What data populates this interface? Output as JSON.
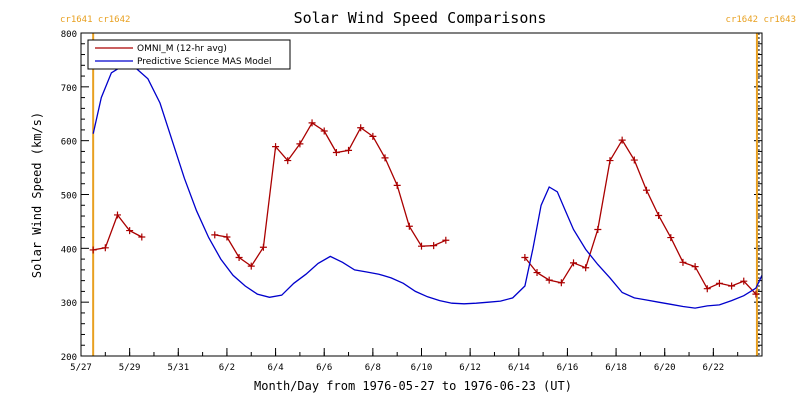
{
  "chart_data": {
    "type": "line",
    "title": "Solar Wind Speed Comparisons",
    "xlabel": "Month/Day from 1976-05-27 to 1976-06-23 (UT)",
    "ylabel": "Solar Wind Speed (km/s)",
    "xlim": [
      "1976-05-27",
      "1976-06-24"
    ],
    "ylim": [
      200,
      800
    ],
    "x_ticks": [
      {
        "date": "1976-05-27",
        "label": "5/27"
      },
      {
        "date": "1976-05-29",
        "label": "5/29"
      },
      {
        "date": "1976-05-31",
        "label": "5/31"
      },
      {
        "date": "1976-06-02",
        "label": "6/2"
      },
      {
        "date": "1976-06-04",
        "label": "6/4"
      },
      {
        "date": "1976-06-06",
        "label": "6/6"
      },
      {
        "date": "1976-06-08",
        "label": "6/8"
      },
      {
        "date": "1976-06-10",
        "label": "6/10"
      },
      {
        "date": "1976-06-12",
        "label": "6/12"
      },
      {
        "date": "1976-06-14",
        "label": "6/14"
      },
      {
        "date": "1976-06-16",
        "label": "6/16"
      },
      {
        "date": "1976-06-18",
        "label": "6/18"
      },
      {
        "date": "1976-06-20",
        "label": "6/20"
      },
      {
        "date": "1976-06-22",
        "label": "6/22"
      }
    ],
    "y_ticks": [
      200,
      300,
      400,
      500,
      600,
      700,
      800
    ],
    "rotation_markers": [
      {
        "date": "1976-05-27T12:00",
        "label": "cr1641 cr1642",
        "color": "#e8a020"
      },
      {
        "date": "1976-06-23T19:00",
        "label": "cr1642 cr1643",
        "color": "#e8a020"
      }
    ],
    "legend_placement": "top-left",
    "series": [
      {
        "name": "OMNI_M (12-hr avg)",
        "color": "#aa0000",
        "marker": "plus",
        "segments": [
          [
            [
              "1976-05-27T12:00",
              397
            ],
            [
              "1976-05-28T00:00",
              401
            ],
            [
              "1976-05-28T12:00",
              462
            ],
            [
              "1976-05-29T00:00",
              433
            ],
            [
              "1976-05-29T12:00",
              421
            ]
          ],
          [
            [
              "1976-06-01T12:00",
              425
            ],
            [
              "1976-06-02T00:00",
              421
            ],
            [
              "1976-06-02T12:00",
              383
            ],
            [
              "1976-06-03T00:00",
              367
            ],
            [
              "1976-06-03T12:00",
              402
            ],
            [
              "1976-06-04T00:00",
              589
            ],
            [
              "1976-06-04T12:00",
              563
            ],
            [
              "1976-06-05T00:00",
              594
            ],
            [
              "1976-06-05T12:00",
              633
            ],
            [
              "1976-06-06T00:00",
              618
            ],
            [
              "1976-06-06T12:00",
              578
            ],
            [
              "1976-06-07T00:00",
              582
            ],
            [
              "1976-06-07T12:00",
              624
            ],
            [
              "1976-06-08T00:00",
              608
            ],
            [
              "1976-06-08T12:00",
              568
            ],
            [
              "1976-06-09T00:00",
              517
            ],
            [
              "1976-06-09T12:00",
              441
            ],
            [
              "1976-06-10T00:00",
              404
            ],
            [
              "1976-06-10T12:00",
              405
            ],
            [
              "1976-06-11T00:00",
              415
            ]
          ],
          [
            [
              "1976-06-14T06:00",
              383
            ],
            [
              "1976-06-14T18:00",
              355
            ],
            [
              "1976-06-15T06:00",
              341
            ],
            [
              "1976-06-15T18:00",
              336
            ],
            [
              "1976-06-16T06:00",
              373
            ],
            [
              "1976-06-16T18:00",
              364
            ],
            [
              "1976-06-17T06:00",
              435
            ],
            [
              "1976-06-17T18:00",
              563
            ],
            [
              "1976-06-18T06:00",
              601
            ],
            [
              "1976-06-18T18:00",
              564
            ],
            [
              "1976-06-19T06:00",
              508
            ],
            [
              "1976-06-19T18:00",
              461
            ],
            [
              "1976-06-20T06:00",
              420
            ],
            [
              "1976-06-20T18:00",
              374
            ],
            [
              "1976-06-21T06:00",
              366
            ],
            [
              "1976-06-21T18:00",
              325
            ],
            [
              "1976-06-22T06:00",
              335
            ],
            [
              "1976-06-22T18:00",
              330
            ],
            [
              "1976-06-23T06:00",
              339
            ],
            [
              "1976-06-23T18:00",
              315
            ]
          ]
        ]
      },
      {
        "name": "Predictive Science MAS Model",
        "color": "#0000cc",
        "marker": "none",
        "segments": [
          [
            [
              "1976-05-27T12:00",
              613
            ],
            [
              "1976-05-27T20:00",
              680
            ],
            [
              "1976-05-28T06:00",
              726
            ],
            [
              "1976-05-28T18:00",
              740
            ],
            [
              "1976-05-29T06:00",
              735
            ],
            [
              "1976-05-29T18:00",
              715
            ],
            [
              "1976-05-30T06:00",
              670
            ],
            [
              "1976-05-30T18:00",
              600
            ],
            [
              "1976-05-31T06:00",
              530
            ],
            [
              "1976-05-31T18:00",
              470
            ],
            [
              "1976-06-01T06:00",
              420
            ],
            [
              "1976-06-01T18:00",
              380
            ],
            [
              "1976-06-02T06:00",
              350
            ],
            [
              "1976-06-02T18:00",
              330
            ],
            [
              "1976-06-03T06:00",
              315
            ],
            [
              "1976-06-03T18:00",
              309
            ],
            [
              "1976-06-04T06:00",
              313
            ],
            [
              "1976-06-04T18:00",
              335
            ],
            [
              "1976-06-05T06:00",
              352
            ],
            [
              "1976-06-05T18:00",
              372
            ],
            [
              "1976-06-06T06:00",
              385
            ],
            [
              "1976-06-06T18:00",
              374
            ],
            [
              "1976-06-07T06:00",
              360
            ],
            [
              "1976-06-07T18:00",
              356
            ],
            [
              "1976-06-08T06:00",
              352
            ],
            [
              "1976-06-08T18:00",
              345
            ],
            [
              "1976-06-09T06:00",
              335
            ],
            [
              "1976-06-09T18:00",
              320
            ],
            [
              "1976-06-10T06:00",
              310
            ],
            [
              "1976-06-10T18:00",
              303
            ],
            [
              "1976-06-11T06:00",
              298
            ],
            [
              "1976-06-11T18:00",
              297
            ],
            [
              "1976-06-12T06:00",
              298
            ],
            [
              "1976-06-12T18:00",
              300
            ],
            [
              "1976-06-13T06:00",
              302
            ],
            [
              "1976-06-13T18:00",
              308
            ],
            [
              "1976-06-14T06:00",
              330
            ],
            [
              "1976-06-14T14:00",
              400
            ],
            [
              "1976-06-14T22:00",
              480
            ],
            [
              "1976-06-15T06:00",
              514
            ],
            [
              "1976-06-15T14:00",
              505
            ],
            [
              "1976-06-15T22:00",
              470
            ],
            [
              "1976-06-16T06:00",
              435
            ],
            [
              "1976-06-16T18:00",
              398
            ],
            [
              "1976-06-17T06:00",
              370
            ],
            [
              "1976-06-17T18:00",
              345
            ],
            [
              "1976-06-18T06:00",
              318
            ],
            [
              "1976-06-18T18:00",
              308
            ],
            [
              "1976-06-19T06:00",
              304
            ],
            [
              "1976-06-19T18:00",
              300
            ],
            [
              "1976-06-20T06:00",
              296
            ],
            [
              "1976-06-20T18:00",
              292
            ],
            [
              "1976-06-21T06:00",
              289
            ],
            [
              "1976-06-21T18:00",
              293
            ],
            [
              "1976-06-22T06:00",
              295
            ],
            [
              "1976-06-22T18:00",
              303
            ],
            [
              "1976-06-23T06:00",
              312
            ],
            [
              "1976-06-23T18:00",
              326
            ],
            [
              "1976-06-24T00:00",
              350
            ]
          ]
        ]
      }
    ]
  }
}
